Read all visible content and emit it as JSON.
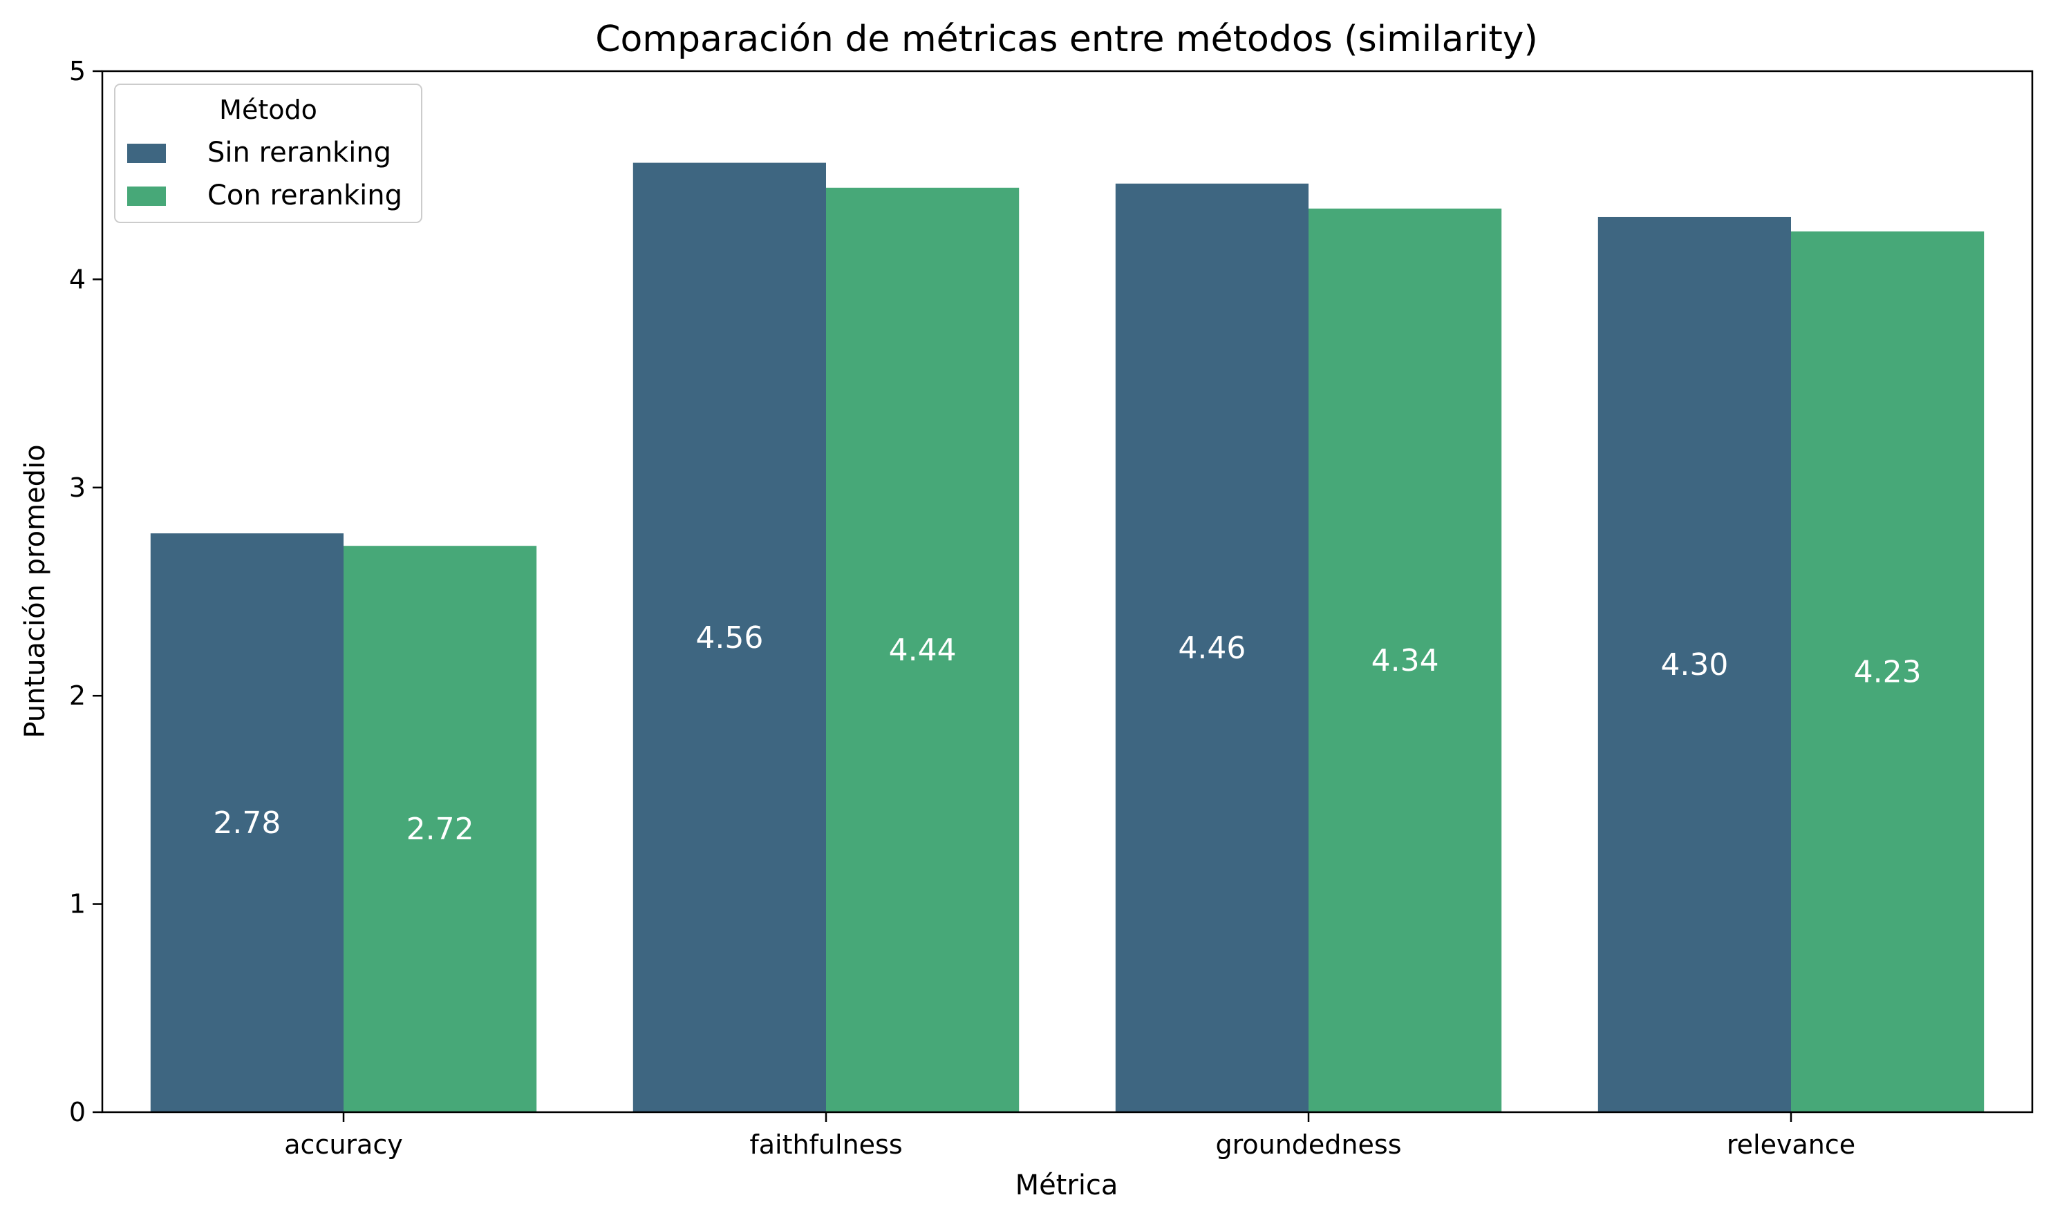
{
  "chart_data": {
    "type": "bar",
    "title": "Comparación de métricas entre métodos (similarity)",
    "xlabel": "Métrica",
    "ylabel": "Puntuación promedio",
    "categories": [
      "accuracy",
      "faithfulness",
      "groundedness",
      "relevance"
    ],
    "series": [
      {
        "name": "Sin reranking",
        "values": [
          2.78,
          4.56,
          4.46,
          4.3
        ],
        "color": "#3e6681"
      },
      {
        "name": "Con reranking",
        "values": [
          2.72,
          4.44,
          4.34,
          4.23
        ],
        "color": "#47a878"
      }
    ],
    "data_labels": [
      [
        "2.78",
        "4.56",
        "4.46",
        "4.30"
      ],
      [
        "2.72",
        "4.44",
        "4.34",
        "4.23"
      ]
    ],
    "ylim": [
      0,
      5
    ],
    "yticks": [
      "0",
      "1",
      "2",
      "3",
      "4",
      "5"
    ],
    "grid": false,
    "legend": {
      "title": "Método",
      "placement": "top-left"
    }
  }
}
